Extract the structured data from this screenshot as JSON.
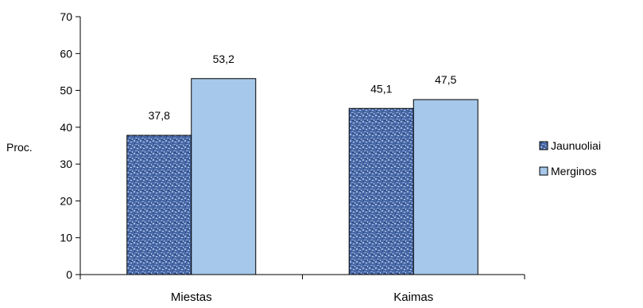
{
  "chart_data": {
    "type": "bar",
    "categories": [
      "Miestas",
      "Kaimas"
    ],
    "series": [
      {
        "name": "Jaunuoliai",
        "values": [
          37.8,
          45.1
        ],
        "value_labels": [
          "37,8",
          "45,1"
        ],
        "color": "#3f5f9f",
        "pattern": "textured-blue"
      },
      {
        "name": "Merginos",
        "values": [
          53.2,
          47.5
        ],
        "value_labels": [
          "53,2",
          "47,5"
        ],
        "color": "#a6c8ea"
      }
    ],
    "ylabel": "Proc.",
    "ylim": [
      0,
      70
    ],
    "yticks": [
      0,
      10,
      20,
      30,
      40,
      50,
      60,
      70
    ],
    "grid": false,
    "legend": "right"
  }
}
